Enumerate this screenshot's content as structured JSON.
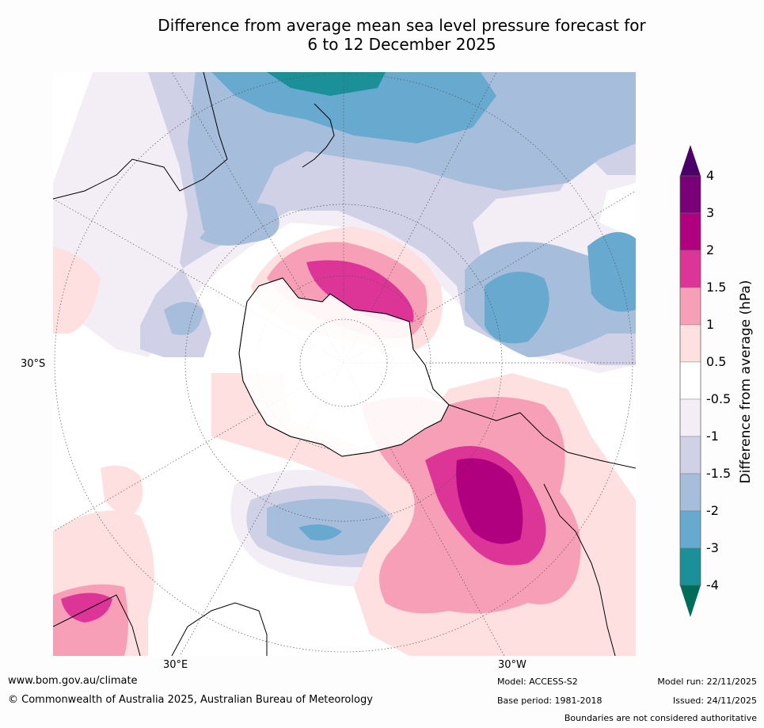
{
  "title": {
    "line1": "Difference from average mean sea level pressure forecast for",
    "line2": "6 to 12 December 2025"
  },
  "map": {
    "projection": "south polar stereographic",
    "labels": {
      "lat_30s": "30°S",
      "lon_30e": "30°E",
      "lon_30w": "30°W"
    }
  },
  "colorbar": {
    "title": "Difference from average (hPa)",
    "ticks": [
      "4",
      "3",
      "2",
      "1.5",
      "1",
      "0.5",
      "-0.5",
      "-1",
      "-1.5",
      "-2",
      "-3",
      "-4"
    ],
    "colors": {
      "above_4": "#4a0068",
      "3_to_4": "#7a0078",
      "2_to_3": "#b0007f",
      "1.5_to_2": "#dd3497",
      "1_to_1.5": "#f89fb8",
      "0.5_to_1": "#fde0df",
      "-0.5_to_0.5": "#ffffff",
      "-1_to_-0.5": "#f3eef5",
      "-1.5_to_-1": "#d0d1e6",
      "-2_to_-1.5": "#a6bddb",
      "-3_to_-2": "#67a9cf",
      "-4_to_-3": "#1c9099",
      "below_-4": "#016c59"
    }
  },
  "footer": {
    "website": "www.bom.gov.au/climate",
    "copyright": "© Commonwealth of Australia 2025, Australian Bureau of Meteorology",
    "model": "Model: ACCESS-S2",
    "base_period": "Base period: 1981-2018",
    "model_run": "Model run: 22/11/2025",
    "issued": "Issued: 24/11/2025",
    "disclaimer": "Boundaries are not considered authoritative"
  }
}
